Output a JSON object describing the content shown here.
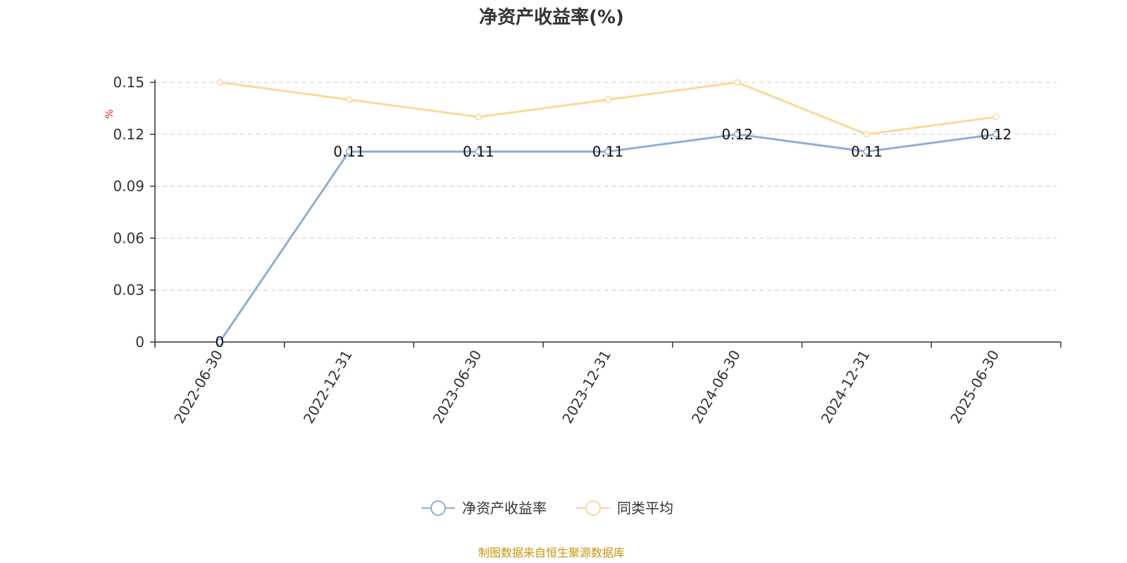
{
  "chart_data": {
    "type": "line",
    "title": "净资产收益率(%)",
    "ylabel": "%",
    "ylim": [
      0,
      0.15
    ],
    "yticks": [
      "0",
      "0.03",
      "0.06",
      "0.09",
      "0.12",
      "0.15"
    ],
    "categories": [
      "2022-06-30",
      "2022-12-31",
      "2023-06-30",
      "2023-12-31",
      "2024-06-30",
      "2024-12-31",
      "2025-06-30"
    ],
    "series": [
      {
        "name": "净资产收益率",
        "color": "#8eaed8",
        "values": [
          0,
          0.11,
          0.11,
          0.11,
          0.12,
          0.11,
          0.12
        ],
        "labels": [
          "0",
          "0.11",
          "0.11",
          "0.11",
          "0.12",
          "0.11",
          "0.12"
        ]
      },
      {
        "name": "同类平均",
        "color": "#fdd897",
        "values": [
          0.15,
          0.14,
          0.13,
          0.14,
          0.15,
          0.12,
          0.13
        ]
      }
    ],
    "grid": true,
    "legend_position": "bottom"
  },
  "unit_color": "#e02020",
  "source": "制图数据来自恒生聚源数据库",
  "source_color": "#c8960a"
}
